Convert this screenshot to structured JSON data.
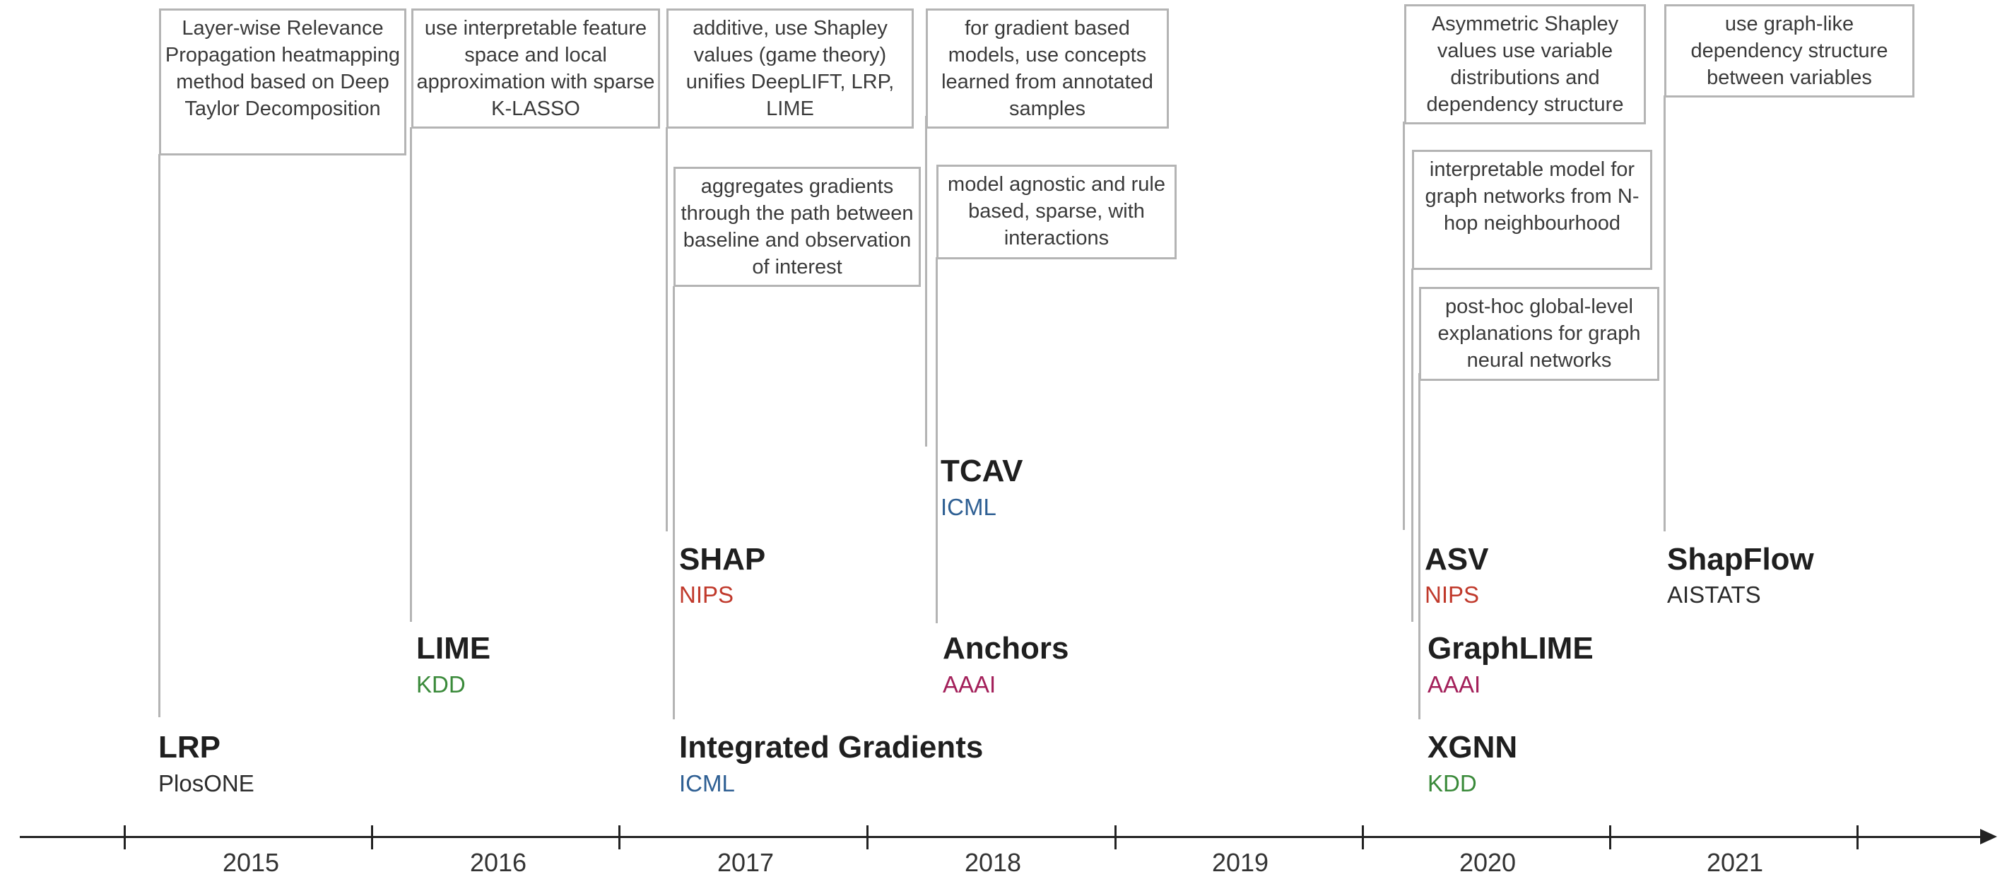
{
  "descriptions": {
    "lrp": "Layer-wise Relevance Propagation heatmapping method based on Deep Taylor Decomposition",
    "lime": "use interpretable feature space and local approximation with sparse K-LASSO",
    "shap": "additive, use Shapley values (game theory) unifies DeepLIFT, LRP, LIME",
    "ig": "aggregates gradients through the path between baseline and observation of interest",
    "tcav": "for gradient based models, use concepts learned from annotated samples",
    "anchors": "model agnostic and rule based, sparse, with interactions",
    "asv": "Asymmetric Shapley values use variable distributions and dependency structure",
    "graphlime": "interpretable model for graph networks from N-hop neighbourhood",
    "xgnn": "post-hoc global-level explanations for graph neural networks",
    "shapflow": "use graph-like dependency structure between variables"
  },
  "methods": {
    "lrp": {
      "name": "LRP",
      "venue": "PlosONE"
    },
    "lime": {
      "name": "LIME",
      "venue": "KDD"
    },
    "shap": {
      "name": "SHAP",
      "venue": "NIPS"
    },
    "ig": {
      "name": "Integrated Gradients",
      "venue": "ICML"
    },
    "tcav": {
      "name": "TCAV",
      "venue": "ICML"
    },
    "anchors": {
      "name": "Anchors",
      "venue": "AAAI"
    },
    "asv": {
      "name": "ASV",
      "venue": "NIPS"
    },
    "graphlime": {
      "name": "GraphLIME",
      "venue": "AAAI"
    },
    "xgnn": {
      "name": "XGNN",
      "venue": "KDD"
    },
    "shapflow": {
      "name": "ShapFlow",
      "venue": "AISTATS"
    }
  },
  "venue_colors": {
    "PlosONE": "#2b2b2b",
    "KDD": "#3a8a3a",
    "NIPS": "#c0392b",
    "ICML": "#2e5f93",
    "AAAI": "#a3205a",
    "AISTATS": "#2b2b2b"
  },
  "years": [
    "2015",
    "2016",
    "2017",
    "2018",
    "2019",
    "2020",
    "2021"
  ]
}
